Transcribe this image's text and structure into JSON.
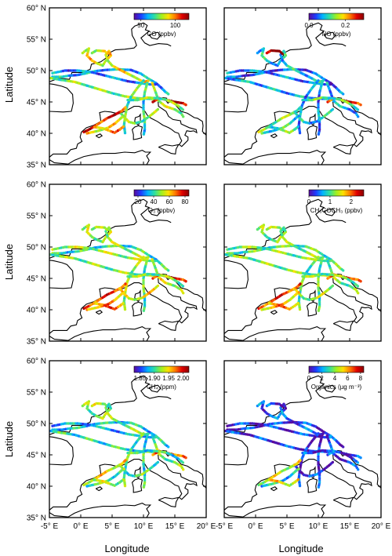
{
  "figure": {
    "ylabel": "Latitude",
    "xlabel": "Longitude",
    "lat_ticks": [
      "35° N",
      "40° N",
      "45° N",
      "50° N",
      "55° N",
      "60° N"
    ],
    "lon_ticks": [
      "-5° E",
      "0° E",
      "5° E",
      "10° E",
      "15° E",
      "20° E"
    ]
  },
  "chart_data": [
    {
      "type": "scatter",
      "colorbar_label": "CO (ppbv)",
      "colorbar_ticks": [
        "50",
        "100"
      ],
      "cmin": 40,
      "cmax": 120,
      "xlim": [
        -5,
        20
      ],
      "ylim": [
        35,
        60
      ]
    },
    {
      "type": "scatter",
      "colorbar_label": "NO (ppbv)",
      "colorbar_ticks": [
        "0.0",
        "0.2"
      ],
      "cmin": 0,
      "cmax": 0.3,
      "xlim": [
        -5,
        20
      ],
      "ylim": [
        35,
        60
      ]
    },
    {
      "type": "scatter",
      "colorbar_label": "O₃ (ppbv)",
      "colorbar_ticks": [
        "20",
        "40",
        "60",
        "80"
      ],
      "cmin": 15,
      "cmax": 85,
      "xlim": [
        -5,
        20
      ],
      "ylim": [
        35,
        60
      ]
    },
    {
      "type": "scatter",
      "colorbar_label": "CH₃COCH₃ (ppbv)",
      "colorbar_ticks": [
        "0",
        "1",
        "2"
      ],
      "cmin": 0,
      "cmax": 2.6,
      "xlim": [
        -5,
        20
      ],
      "ylim": [
        35,
        60
      ]
    },
    {
      "type": "scatter",
      "colorbar_label": "CH₄ (ppm)",
      "colorbar_ticks": [
        "1.85",
        "1.90",
        "1.95",
        "2.00"
      ],
      "cmin": 1.83,
      "cmax": 2.02,
      "xlim": [
        -5,
        20
      ],
      "ylim": [
        35,
        60
      ]
    },
    {
      "type": "scatter",
      "colorbar_label": "Organics (µg m⁻³)",
      "colorbar_ticks": [
        "0",
        "2",
        "4",
        "6",
        "8"
      ],
      "cmin": 0,
      "cmax": 8.5,
      "xlim": [
        -5,
        20
      ],
      "ylim": [
        35,
        60
      ]
    }
  ],
  "colors": {
    "colormap": [
      "#5a0a9b",
      "#1f3bff",
      "#00b4ff",
      "#30e0a0",
      "#a0f020",
      "#ffe000",
      "#ff7a00",
      "#e00000",
      "#8a0000"
    ],
    "coastline": "#000000",
    "axes": "#000000"
  }
}
